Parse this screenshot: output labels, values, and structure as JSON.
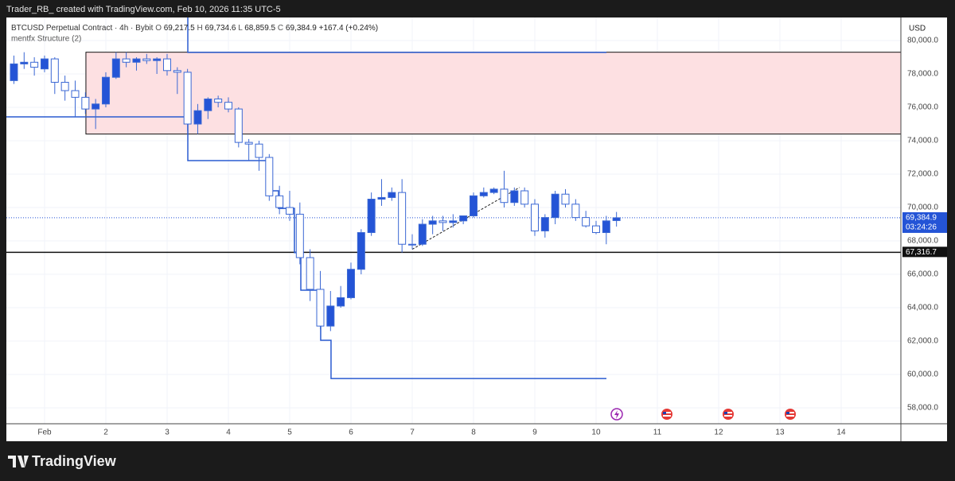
{
  "header": "Trader_RB_ created with TradingView.com, Feb 10, 2026 11:35 UTC-5",
  "brand": "TradingView",
  "chart_data": {
    "type": "candlestick",
    "symbol": "BTCUSD Perpetual Contract · 4h · Bybit",
    "ohlc_legend": [
      {
        "label": "O",
        "value": "69,217.5"
      },
      {
        "label": "H",
        "value": "69,734.6"
      },
      {
        "label": "L",
        "value": "68,859.5"
      },
      {
        "label": "C",
        "value": "69,384.9"
      }
    ],
    "change": "+167.4 (+0.24%)",
    "indicator": "mentfx Structure (2)",
    "currency": "USD",
    "x": [
      0.5,
      0.6667,
      0.8333,
      1,
      1.1667,
      1.3333,
      1.5,
      1.6667,
      1.8333,
      2,
      2.1667,
      2.3333,
      2.5,
      2.6667,
      2.8333,
      3,
      3.1667,
      3.3333,
      3.5,
      3.6667,
      3.8333,
      4,
      4.1667,
      4.3333,
      4.5,
      4.6667,
      4.8333,
      5,
      5.1667,
      5.3333,
      5.5,
      5.6667,
      5.8333,
      6,
      6.1667,
      6.3333,
      6.5,
      6.6667,
      6.8333,
      7,
      7.1667,
      7.3333,
      7.5,
      7.6667,
      7.8333,
      8,
      8.1667,
      8.3333,
      8.5,
      8.6667,
      8.8333,
      9,
      9.1667,
      9.3333,
      9.5,
      9.6667,
      9.8333,
      10,
      10.1667,
      10.3333
    ],
    "open": [
      77600,
      78600,
      78700,
      78300,
      78900,
      77500,
      77000,
      76600,
      75900,
      76200,
      77800,
      78900,
      78700,
      78900,
      78800,
      78900,
      78200,
      78100,
      75000,
      75800,
      76500,
      76300,
      75900,
      73900,
      73800,
      73000,
      70700,
      70000,
      69600,
      67000,
      65100,
      62900,
      64100,
      64600,
      66300,
      68500,
      70500,
      70600,
      70900,
      67800,
      67800,
      69000,
      69200,
      69100,
      69200,
      69500,
      70700,
      70900,
      71100,
      70300,
      71000,
      70200,
      68600,
      69400,
      70800,
      70200,
      69400,
      68900,
      68500,
      69217.5
    ],
    "high": [
      79100,
      79300,
      79000,
      79100,
      79000,
      77900,
      77600,
      76900,
      76500,
      78100,
      79300,
      79300,
      79000,
      79200,
      79000,
      79200,
      78400,
      78300,
      76200,
      76600,
      76700,
      76600,
      76000,
      74100,
      74000,
      73200,
      71300,
      71000,
      70300,
      67500,
      66200,
      65000,
      65300,
      66700,
      68700,
      70900,
      71700,
      71200,
      71700,
      68400,
      69300,
      69500,
      69500,
      69600,
      69500,
      70900,
      71200,
      71200,
      72200,
      71200,
      71200,
      70500,
      69600,
      71000,
      71100,
      70500,
      69800,
      69200,
      69500,
      69734.6
    ],
    "low": [
      77400,
      78300,
      77900,
      78100,
      76800,
      76400,
      75400,
      75600,
      74700,
      76000,
      77700,
      78400,
      78200,
      78600,
      78000,
      77900,
      76800,
      74600,
      74400,
      75300,
      76000,
      75700,
      73600,
      72800,
      72200,
      70400,
      69600,
      69200,
      66600,
      64400,
      62700,
      62600,
      64000,
      64500,
      66000,
      68300,
      70100,
      70400,
      67300,
      67500,
      67700,
      68400,
      68600,
      68800,
      69000,
      69400,
      70600,
      70800,
      70000,
      70100,
      70000,
      68300,
      68200,
      69000,
      70000,
      69200,
      68800,
      68400,
      67800,
      68859.5
    ],
    "close": [
      78600,
      78700,
      78400,
      78900,
      77500,
      77000,
      76600,
      75900,
      76200,
      77800,
      78900,
      78700,
      78900,
      78800,
      78900,
      78200,
      78100,
      75000,
      75800,
      76500,
      76300,
      75900,
      73900,
      73800,
      73000,
      70700,
      70000,
      69600,
      67000,
      65100,
      62900,
      64100,
      64600,
      66300,
      68500,
      70500,
      70600,
      70900,
      67800,
      67800,
      69000,
      69200,
      69100,
      69200,
      69500,
      70700,
      70900,
      71100,
      70300,
      71000,
      70200,
      68600,
      69400,
      70800,
      70200,
      69400,
      68900,
      68500,
      69200,
      69384.9
    ],
    "up_color": "#2454d6",
    "down_color": "#ffffff",
    "border_color": "#3b68d4",
    "zone": {
      "top": 79300,
      "bottom": 74400,
      "x_start": 1.675,
      "color": "#fde0e2"
    },
    "structure": {
      "color": "#2a5bd0",
      "x": [
        0.377,
        3.338,
        3.338,
        4.688,
        4.688,
        4.818,
        4.818,
        5.078,
        5.078,
        5.182,
        5.182,
        5.506,
        5.506,
        5.675,
        5.675,
        10.169,
        null,
        3.338,
        3.338,
        10.169
      ],
      "values": [
        75430,
        75430,
        72810,
        72810,
        71000,
        71000,
        69950,
        69950,
        67300,
        67300,
        65050,
        65050,
        62050,
        62050,
        59760,
        59760,
        null,
        81380,
        79290,
        79290
      ]
    },
    "trendline": {
      "x": [
        7,
        8.75
      ],
      "values": [
        67500,
        71200
      ]
    },
    "price_lines": [
      {
        "value": 69384.9,
        "label": "69,384.9",
        "countdown": "03:24:26",
        "color": "#2454d6",
        "dotted": true
      },
      {
        "value": 67316.7,
        "label": "67,316.7",
        "color": "#111111",
        "dotted": false
      }
    ],
    "xlim": [
      0.377,
      14.974
    ],
    "xticks": [
      {
        "value": 1,
        "label": "Feb"
      },
      2,
      3,
      4,
      5,
      6,
      7,
      8,
      9,
      10,
      11,
      12,
      13,
      14
    ],
    "ylim": [
      57050,
      81380
    ],
    "yticks": [
      {
        "value": 58000,
        "label": "58,000.0"
      },
      {
        "value": 60000,
        "label": "60,000.0"
      },
      {
        "value": 62000,
        "label": "62,000.0"
      },
      {
        "value": 64000,
        "label": "64,000.0"
      },
      {
        "value": 66000,
        "label": "66,000.0"
      },
      {
        "value": 68000,
        "label": "68,000.0"
      },
      {
        "value": 70000,
        "label": "70,000.0"
      },
      {
        "value": 72000,
        "label": "72,000.0"
      },
      {
        "value": 74000,
        "label": "74,000.0"
      },
      {
        "value": 76000,
        "label": "76,000.0"
      },
      {
        "value": 78000,
        "label": "78,000.0"
      },
      {
        "value": 80000,
        "label": "80,000.0"
      }
    ],
    "grid": true
  }
}
